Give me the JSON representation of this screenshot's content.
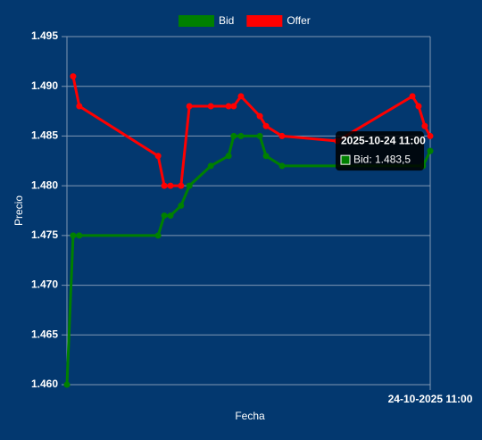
{
  "chart_data": {
    "type": "line",
    "x_label": "Fecha",
    "y_label": "Precio",
    "xlim": [
      0,
      100
    ],
    "xticks": [
      {
        "value": 100,
        "label": "24-10-2025 11:00"
      }
    ],
    "ylim": [
      1.46,
      1.495
    ],
    "yticks": [
      {
        "value": 1.46,
        "label": "1.460"
      },
      1.465,
      {
        "value": 1.47,
        "label": "1.470"
      },
      1.475,
      {
        "value": 1.48,
        "label": "1.480"
      },
      1.485,
      {
        "value": 1.49,
        "label": "1.490"
      },
      1.495
    ],
    "grid": true,
    "legend": "top",
    "series": [
      {
        "name": "Bid",
        "color": "#008000",
        "x": [
          0,
          1.7,
          3.4,
          25.1,
          26.8,
          28.5,
          31.4,
          33.7,
          39.6,
          44.5,
          45.9,
          47.9,
          53.1,
          54.8,
          59.2,
          98.0,
          100
        ],
        "values": [
          1.46,
          1.475,
          1.475,
          1.475,
          1.477,
          1.477,
          1.478,
          1.48,
          1.482,
          1.483,
          1.485,
          1.485,
          1.485,
          1.483,
          1.482,
          1.482,
          1.4835
        ]
      },
      {
        "name": "Offer",
        "color": "#ff0000",
        "x": [
          1.7,
          3.4,
          25.1,
          26.8,
          28.5,
          31.4,
          33.7,
          39.6,
          44.5,
          45.9,
          47.9,
          53.1,
          54.8,
          59.2,
          74.4,
          95.1,
          96.8,
          98.5,
          100
        ],
        "values": [
          1.491,
          1.488,
          1.483,
          1.48,
          1.48,
          1.48,
          1.488,
          1.488,
          1.488,
          1.488,
          1.489,
          1.487,
          1.486,
          1.485,
          1.4845,
          1.489,
          1.488,
          1.486,
          1.485
        ]
      }
    ],
    "tooltip": {
      "title": "2025-10-24 11:00",
      "text": "Bid: 1.483,5"
    }
  }
}
